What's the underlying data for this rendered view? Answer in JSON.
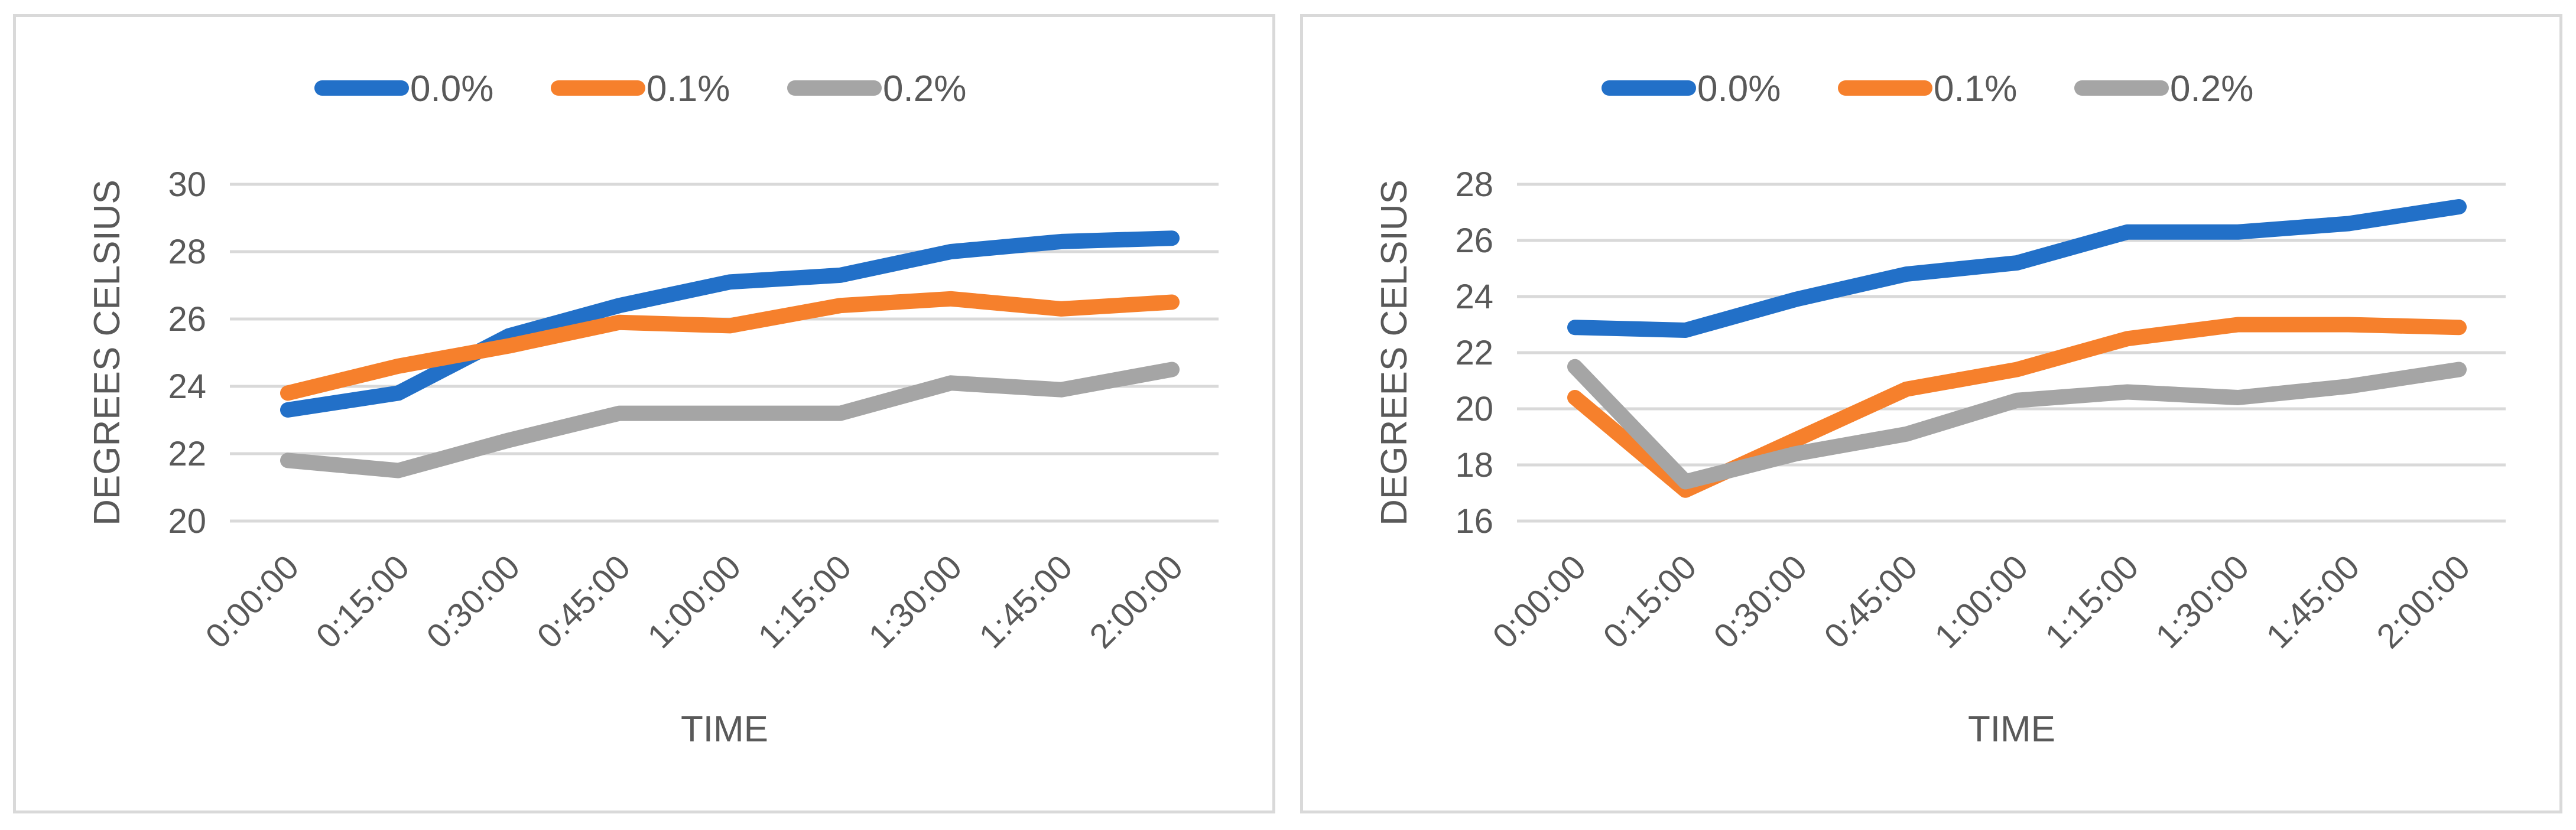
{
  "colors": {
    "series_0": "#2270c8",
    "series_1": "#f6802c",
    "series_2": "#a5a5a5",
    "gridline": "#d9d9d9",
    "border": "#d9d9d9",
    "text": "#595959"
  },
  "chart_data": [
    {
      "type": "line",
      "title": "",
      "xlabel": "TIME",
      "ylabel": "DEGREES CELSIUS",
      "categories": [
        "0:00:00",
        "0:15:00",
        "0:30:00",
        "0:45:00",
        "1:00:00",
        "1:15:00",
        "1:30:00",
        "1:45:00",
        "2:00:00"
      ],
      "ylim": [
        20,
        30
      ],
      "yticks": [
        20,
        22,
        24,
        26,
        28,
        30
      ],
      "grid": true,
      "legend": "top",
      "series": [
        {
          "name": "0.0%",
          "values": [
            23.3,
            23.8,
            25.5,
            26.4,
            27.1,
            27.3,
            28.0,
            28.3,
            28.4
          ]
        },
        {
          "name": "0.1%",
          "values": [
            23.8,
            24.6,
            25.2,
            25.9,
            25.8,
            26.4,
            26.6,
            26.3,
            26.5
          ]
        },
        {
          "name": "0.2%",
          "values": [
            21.8,
            21.5,
            22.4,
            23.2,
            23.2,
            23.2,
            24.1,
            23.9,
            24.5
          ]
        }
      ]
    },
    {
      "type": "line",
      "title": "",
      "xlabel": "TIME",
      "ylabel": "DEGREES CELSIUS",
      "categories": [
        "0:00:00",
        "0:15:00",
        "0:30:00",
        "0:45:00",
        "1:00:00",
        "1:15:00",
        "1:30:00",
        "1:45:00",
        "2:00:00"
      ],
      "ylim": [
        16,
        28
      ],
      "yticks": [
        16,
        18,
        20,
        22,
        24,
        26,
        28
      ],
      "grid": true,
      "legend": "top",
      "series": [
        {
          "name": "0.0%",
          "values": [
            22.9,
            22.8,
            23.9,
            24.8,
            25.2,
            26.3,
            26.3,
            26.6,
            27.2
          ]
        },
        {
          "name": "0.1%",
          "values": [
            20.4,
            17.1,
            18.9,
            20.7,
            21.4,
            22.5,
            23.0,
            23.0,
            22.9
          ]
        },
        {
          "name": "0.2%",
          "values": [
            21.5,
            17.4,
            18.4,
            19.1,
            20.3,
            20.6,
            20.4,
            20.8,
            21.4
          ]
        }
      ]
    }
  ]
}
